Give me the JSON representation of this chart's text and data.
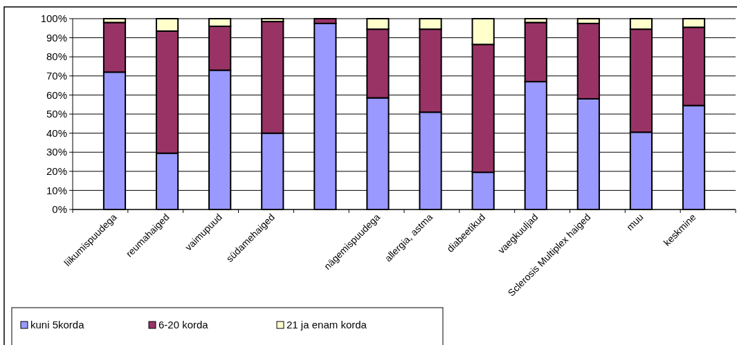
{
  "chart_data": {
    "type": "bar",
    "stacked": true,
    "categories": [
      "liikumispuudega",
      "reumahaiged",
      "vaimupuud",
      "südamehaiged",
      null,
      "nägemispuudega",
      "allergia, astma",
      "diabeetikud",
      "vaegkuuljad",
      "Sclerosis Multiplex haiged",
      "muu",
      "keskmine"
    ],
    "series": [
      {
        "name": "kuni 5korda",
        "color": "#9999ff",
        "values": [
          72,
          29.5,
          73,
          40,
          97.5,
          58.5,
          51,
          19.5,
          67,
          58,
          40.5,
          54.5
        ]
      },
      {
        "name": "6-20 korda",
        "color": "#993366",
        "values": [
          26,
          64,
          23,
          58.5,
          2.5,
          36,
          43.5,
          67,
          31,
          39.5,
          54,
          41
        ]
      },
      {
        "name": "21 ja enam korda",
        "color": "#ffffcc",
        "values": [
          2,
          6.5,
          4,
          1.5,
          0,
          5.5,
          5.5,
          13.5,
          2,
          2.5,
          5.5,
          4.5
        ]
      }
    ],
    "ylim": [
      0,
      100
    ],
    "yticks": [
      {
        "value": 0,
        "label": "0%"
      },
      {
        "value": 10,
        "label": "10%"
      },
      {
        "value": 20,
        "label": "20%"
      },
      {
        "value": 30,
        "label": "30%"
      },
      {
        "value": 40,
        "label": "40%"
      },
      {
        "value": 50,
        "label": "50%"
      },
      {
        "value": 60,
        "label": "60%"
      },
      {
        "value": 70,
        "label": "70%"
      },
      {
        "value": 80,
        "label": "80%"
      },
      {
        "value": 90,
        "label": "90%"
      },
      {
        "value": 100,
        "label": "100%"
      }
    ],
    "grid": "y",
    "legend": "bottom left"
  }
}
